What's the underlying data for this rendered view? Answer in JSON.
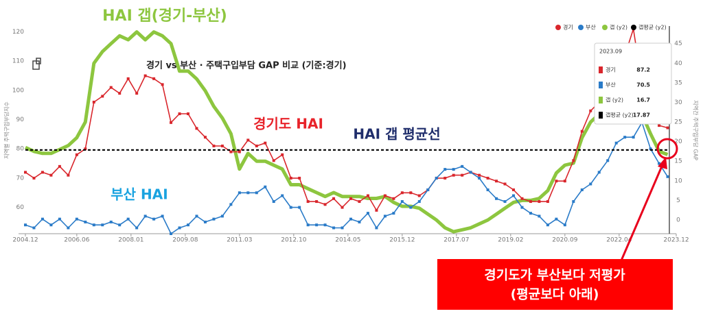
{
  "chart_data": {
    "type": "line",
    "title": "경기 vs 부산 · 주택구입부담 GAP 비교 (기준:경기)",
    "y_label": "지역별 주택구입부담지수",
    "y2_label": "지역간 주택구입부담 GAP",
    "x": [
      "2004.12",
      "2005.03",
      "2005.06",
      "2005.09",
      "2005.12",
      "2006.03",
      "2006.06",
      "2006.09",
      "2006.12",
      "2007.03",
      "2007.06",
      "2007.09",
      "2007.12",
      "2008.03",
      "2008.06",
      "2008.09",
      "2008.12",
      "2009.03",
      "2009.06",
      "2009.09",
      "2009.12",
      "2010.03",
      "2010.06",
      "2010.09",
      "2010.12",
      "2011.03",
      "2011.06",
      "2011.09",
      "2011.12",
      "2012.03",
      "2012.06",
      "2012.09",
      "2012.12",
      "2013.03",
      "2013.06",
      "2013.09",
      "2013.12",
      "2014.03",
      "2014.06",
      "2014.09",
      "2014.12",
      "2015.03",
      "2015.06",
      "2015.09",
      "2015.12",
      "2016.03",
      "2016.06",
      "2016.09",
      "2016.12",
      "2017.03",
      "2017.06",
      "2017.09",
      "2017.12",
      "2018.03",
      "2018.06",
      "2018.09",
      "2018.12",
      "2019.03",
      "2019.06",
      "2019.09",
      "2019.12",
      "2020.03",
      "2020.06",
      "2020.09",
      "2020.12",
      "2021.03",
      "2021.06",
      "2021.09",
      "2021.12",
      "2022.03",
      "2022.06",
      "2022.09",
      "2022.12",
      "2023.03",
      "2023.06",
      "2023.09"
    ],
    "xlim": [
      "2004.12",
      "2023.12"
    ],
    "xticks": [
      "2004.12",
      "2006.06",
      "2008.01",
      "2009.08",
      "2011.03",
      "2012.10",
      "2014.05",
      "2015.12",
      "2017.07",
      "2019.02",
      "2020.09",
      "2022.04",
      "2023.12"
    ],
    "ylim": [
      51,
      122
    ],
    "yticks": [
      60,
      70,
      80,
      90,
      100,
      110,
      120
    ],
    "y2lim": [
      -3.5,
      49.5
    ],
    "y2ticks": [
      0,
      5,
      10,
      15,
      20,
      25,
      30,
      35,
      40,
      45
    ],
    "series": [
      {
        "name": "경기",
        "color": "#d9262c",
        "values": [
          72,
          70,
          72,
          71,
          74,
          71,
          78,
          80,
          96,
          98,
          101,
          99,
          104,
          99,
          105,
          104,
          102,
          89,
          92,
          92,
          87,
          84,
          81,
          81,
          79,
          79,
          83,
          81,
          82,
          76,
          78,
          70,
          70,
          62,
          62,
          61,
          63,
          60,
          63,
          62,
          64,
          59,
          64,
          63,
          65,
          65,
          64,
          66,
          70,
          70,
          71,
          71,
          72,
          71,
          70,
          69,
          68,
          66,
          63,
          62,
          62,
          62,
          69,
          69,
          76,
          86,
          93,
          96,
          100,
          111,
          112,
          121,
          102,
          95,
          88,
          87.2
        ]
      },
      {
        "name": "부산",
        "color": "#2a7bc8",
        "values": [
          54,
          53,
          56,
          54,
          56,
          53,
          56,
          55,
          54,
          54,
          55,
          54,
          56,
          53,
          57,
          56,
          57,
          51,
          53,
          54,
          57,
          55,
          56,
          57,
          61,
          65,
          65,
          65,
          67,
          62,
          64,
          60,
          60,
          54,
          54,
          54,
          53,
          53,
          56,
          55,
          58,
          53,
          57,
          58,
          62,
          60,
          62,
          66,
          70,
          73,
          73,
          74,
          72,
          70,
          66,
          63,
          62,
          64,
          60,
          58,
          57,
          54,
          56,
          54,
          62,
          66,
          68,
          72,
          76,
          82,
          84,
          84,
          89,
          80,
          75,
          70.5
        ]
      },
      {
        "name": "갭 (y2)",
        "color": "#8dc63f",
        "axis": "y2",
        "values": [
          18.5,
          17.5,
          17,
          17,
          18,
          19,
          21,
          25,
          40,
          43,
          45,
          47,
          46,
          48,
          46,
          48,
          47,
          45,
          38,
          38,
          36,
          33,
          29,
          26,
          22,
          13,
          17,
          15,
          15,
          14,
          13,
          9,
          9,
          8,
          7,
          6,
          7,
          6,
          6,
          6,
          5.5,
          5.5,
          6,
          4.5,
          3.5,
          3.5,
          3,
          1.5,
          0,
          -2,
          -3,
          -2.5,
          -2,
          -1,
          0,
          1.5,
          3,
          4.5,
          5,
          5,
          5.5,
          7.5,
          12,
          14,
          14.5,
          21,
          25,
          27,
          29,
          31,
          31,
          31,
          27,
          22,
          17.5,
          16.7
        ]
      }
    ],
    "average_line": {
      "name": "갭평균 (y2)",
      "color": "#000000",
      "axis": "y2",
      "value": 17.87
    },
    "annotations": [
      {
        "text": "HAI 갭(경기-부산)",
        "color": "#8dc63f"
      },
      {
        "text": "경기도 HAI",
        "color": "#e8232a"
      },
      {
        "text": "HAI 갭 평균선",
        "color": "#1f2d6b"
      },
      {
        "text": "부산 HAI",
        "color": "#1aa3e0"
      },
      {
        "text": "경기도가 부산보다 저평가",
        "color": "#ffffff"
      },
      {
        "text": "(평균보다 아래)",
        "color": "#ffffff"
      }
    ]
  }
}
